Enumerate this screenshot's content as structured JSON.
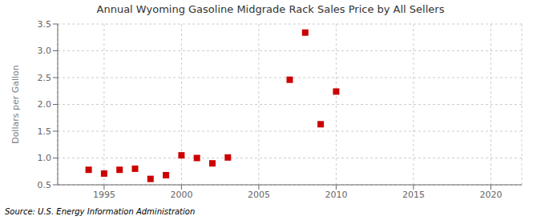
{
  "chart_data": {
    "type": "scatter",
    "title": "Annual Wyoming Gasoline Midgrade Rack Sales Price by All Sellers",
    "y_label": "Dollars per Gallon",
    "annotations": [
      "Source: U.S. Energy Information Administration"
    ],
    "x": [
      1994,
      1995,
      1996,
      1997,
      1998,
      1999,
      2000,
      2001,
      2002,
      2003,
      2007,
      2008,
      2009,
      2010
    ],
    "values": [
      0.78,
      0.71,
      0.78,
      0.8,
      0.61,
      0.68,
      1.05,
      1.0,
      0.9,
      1.01,
      2.46,
      3.34,
      1.63,
      2.24
    ],
    "color": "#cc0000",
    "marker": "square",
    "xlim": [
      1992,
      2022
    ],
    "ylim": [
      0.5,
      3.5
    ],
    "xticks": [
      1995,
      2000,
      2005,
      2010,
      2015,
      2020
    ],
    "yticks": [
      0.5,
      {
        "value": 1,
        "label": "1.0"
      },
      1.5,
      {
        "value": 2,
        "label": "2.0"
      },
      2.5,
      {
        "value": 3,
        "label": "3.0"
      },
      3.5
    ],
    "grid": true
  }
}
